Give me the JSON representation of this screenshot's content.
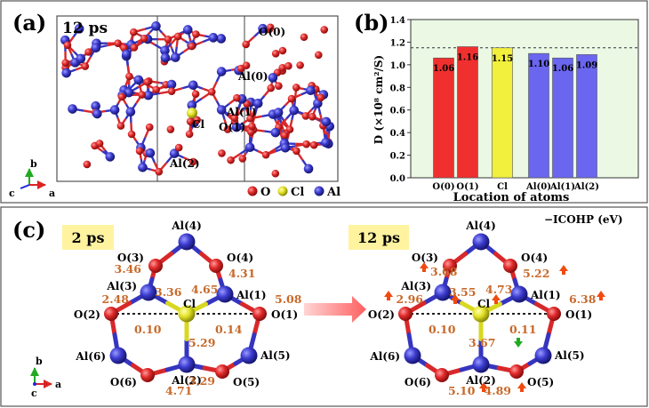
{
  "panels": {
    "a": {
      "label": "(a)",
      "time": "12 ps",
      "atom_labels": {
        "o0": "O(0)",
        "al0": "Al(0)",
        "al1": "Al(1)",
        "o1": "O(1)",
        "cl": "Cl",
        "al2": "Al(2)"
      },
      "axes": {
        "b": "b",
        "c": "c",
        "a": "a"
      },
      "legend": {
        "o": "O",
        "cl": "Cl",
        "al": "Al"
      }
    },
    "b": {
      "label": "(b)"
    },
    "c": {
      "label": "(c)",
      "title": "−ICOHP (eV)",
      "axes": {
        "b": "b",
        "c": "c",
        "a": "a"
      },
      "left": {
        "time": "2 ps",
        "atoms": {
          "al4": "Al(4)",
          "o3": "O(3)",
          "o4": "O(4)",
          "al3": "Al(3)",
          "al1": "Al(1)",
          "cl": "Cl",
          "o2": "O(2)",
          "o1": "O(1)",
          "al6": "Al(6)",
          "al5": "Al(5)",
          "o6": "O(6)",
          "al2": "Al(2)",
          "o5": "O(5)"
        },
        "values": {
          "o3": "3.46",
          "o4": "4.31",
          "al3": "2.48",
          "al1": "5.08",
          "cl_al3": "3.36",
          "cl_al1": "4.65",
          "cl_o2": "0.10",
          "cl_o1": "0.14",
          "cl_al2": "5.29",
          "o6": "4.71",
          "o5": "3.29"
        }
      },
      "right": {
        "time": "12 ps",
        "atoms": {
          "al4": "Al(4)",
          "o3": "O(3)",
          "o4": "O(4)",
          "al3": "Al(3)",
          "al1": "Al(1)",
          "cl": "Cl",
          "o2": "O(2)",
          "o1": "O(1)",
          "al6": "Al(6)",
          "al5": "Al(5)",
          "o6": "O(6)",
          "al2": "Al(2)",
          "o5": "O(5)"
        },
        "values": {
          "o3": "3.68",
          "o4": "5.22",
          "al3": "2.96",
          "al1": "6.38",
          "cl_al3": "3.55",
          "cl_al1": "4.73",
          "cl_o2": "0.10",
          "cl_o1": "0.11",
          "cl_al2": "3.67",
          "o6": "5.10",
          "o5": "4.89"
        }
      }
    }
  },
  "chart_data": {
    "type": "bar",
    "title": "",
    "xlabel": "Location of atoms",
    "ylabel": "D (×10⁸ cm²/S)",
    "ylim": [
      0.0,
      1.4
    ],
    "yticks": [
      "0.0",
      "0.2",
      "0.4",
      "0.6",
      "0.8",
      "1.0",
      "1.2",
      "1.4"
    ],
    "reference_line": 1.15,
    "categories": [
      "O(0)",
      "O(1)",
      "Cl",
      "Al(0)",
      "Al(1)",
      "Al(2)"
    ],
    "values": [
      1.06,
      1.16,
      1.15,
      1.1,
      1.06,
      1.09
    ],
    "value_labels": [
      "1.06",
      "1.16",
      "1.15",
      "1.10",
      "1.06",
      "1.09"
    ],
    "colors": [
      "#f0302f",
      "#f0302f",
      "#f2f03c",
      "#6a66f0",
      "#6a66f0",
      "#6a66f0"
    ],
    "background": "#eaf8e4"
  },
  "colors": {
    "oxygen": "#d8282a",
    "aluminum": "#3535c0",
    "chlorine": "#d8d820",
    "value": "#c8692a",
    "up_arrow": "#f04a10",
    "down_arrow": "#22aa22",
    "time_box": "#fff3a0"
  }
}
